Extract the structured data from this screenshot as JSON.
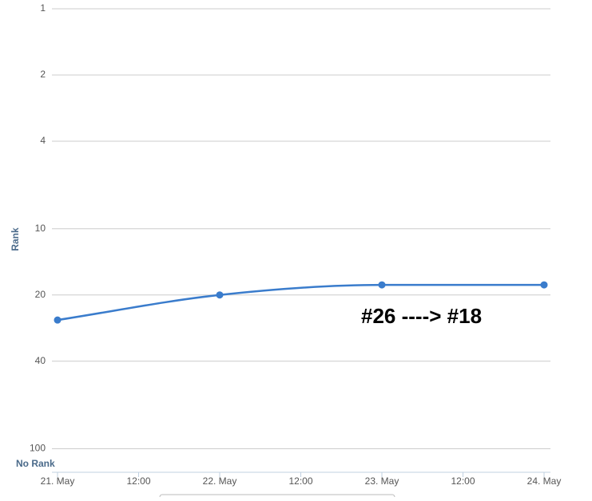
{
  "chart_data": {
    "type": "line",
    "y_label": "Rank",
    "y_log": true,
    "y_reversed": true,
    "grid": true,
    "y_bottom_label": "No Rank",
    "annotation": "#26 ----> #18",
    "x": [
      0,
      1,
      2,
      3
    ],
    "xlim": [
      0,
      3
    ],
    "xticks": [
      {
        "value": 0,
        "label": "21. May"
      },
      {
        "value": 0.5,
        "label": "12:00"
      },
      {
        "value": 1,
        "label": "22. May"
      },
      {
        "value": 1.5,
        "label": "12:00"
      },
      {
        "value": 2,
        "label": "23. May"
      },
      {
        "value": 2.5,
        "label": "12:00"
      },
      {
        "value": 3,
        "label": "24. May"
      }
    ],
    "ylim": [
      1,
      128
    ],
    "yticks": [
      1,
      2,
      4,
      10,
      20,
      40,
      100
    ],
    "series": [
      {
        "color": "#3a7ccc",
        "values": [
          26,
          20,
          18,
          18
        ]
      }
    ]
  }
}
